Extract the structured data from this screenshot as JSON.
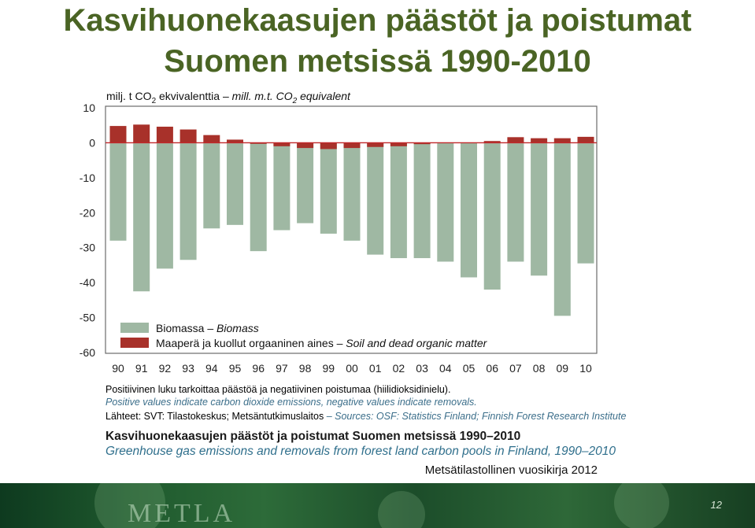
{
  "title": {
    "line1": "Kasvihuonekaasujen päästöt ja poistumat",
    "line2": "Suomen metsissä 1990-2010"
  },
  "unit_label": {
    "fi_prefix": "milj. t CO",
    "fi_suffix": " ekvivalenttia – ",
    "en_prefix": "mill. m.t. CO",
    "en_suffix": " equivalent",
    "subscript": "2"
  },
  "chart_data": {
    "type": "bar",
    "categories": [
      "90",
      "91",
      "92",
      "93",
      "94",
      "95",
      "96",
      "97",
      "98",
      "99",
      "00",
      "01",
      "02",
      "03",
      "04",
      "05",
      "06",
      "07",
      "08",
      "09",
      "10"
    ],
    "series": [
      {
        "name": "Biomassa – Biomass",
        "color": "#9fb8a3",
        "values": [
          -28,
          -42.5,
          -36,
          -33.5,
          -24.5,
          -23.5,
          -31,
          -25,
          -23,
          -26,
          -28,
          -32,
          -33,
          -33,
          -34,
          -38.5,
          -42,
          -34,
          -38,
          -49.5,
          -34.5
        ]
      },
      {
        "name": "Maaperä ja kuollut orgaaninen aines – Soil and dead organic matter",
        "color": "#a8312a",
        "values": [
          4.8,
          5.2,
          4.6,
          3.8,
          2.2,
          0.9,
          -0.3,
          -1,
          -1.5,
          -1.8,
          -1.5,
          -1.2,
          -1,
          -0.4,
          0,
          0,
          0.5,
          1.6,
          1.3,
          1.3,
          1.7
        ]
      }
    ],
    "ylim": [
      -60,
      10
    ],
    "yticks": [
      "10",
      "0",
      "-10",
      "-20",
      "-30",
      "-40",
      "-50",
      "-60"
    ],
    "legend": [
      {
        "fi": "Biomassa – ",
        "en": "Biomass",
        "color": "#9fb8a3"
      },
      {
        "fi": "Maaperä ja kuollut orgaaninen aines – ",
        "en": "Soil and dead organic matter",
        "color": "#a8312a"
      }
    ],
    "legend_position": "lower-left",
    "grid": false,
    "zero_line_color": "#c0282a"
  },
  "notes": {
    "fi_1": "Positiivinen luku tarkoittaa päästöä ja negatiivinen poistumaa (hiilidioksidinielu).",
    "en_1": "Positive values indicate carbon dioxide emissions, negative values indicate removals.",
    "sources_fi": "Lähteet: SVT: Tilastokeskus; Metsäntutkimuslaitos ",
    "sources_en": "– Sources: OSF: Statistics Finland; Finnish Forest Research Institute"
  },
  "caption": {
    "fi": "Kasvihuonekaasujen päästöt ja poistumat Suomen metsissä 1990–2010",
    "en": "Greenhouse gas emissions and removals from forest land carbon pools in Finland, 1990–2010"
  },
  "yearbook": "Metsätilastollinen vuosikirja 2012",
  "footer": {
    "logo": "METLA",
    "page_number": "12"
  }
}
